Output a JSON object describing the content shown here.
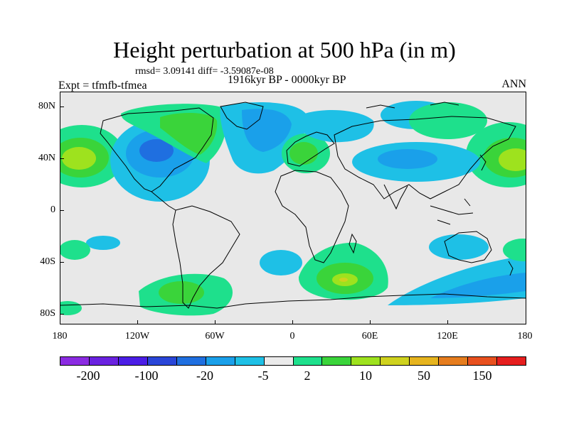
{
  "title": "Height perturbation at 500 hPa (in m)",
  "stats": "rmsd= 3.09141  diff= -3.59087e-08",
  "period": "1916kyr BP - 0000kyr BP",
  "experiment": "Expt = tfmfb-tfmea",
  "season": "ANN",
  "axes": {
    "y_labels": [
      "80N",
      "40N",
      "0",
      "40S",
      "80S"
    ],
    "x_labels": [
      "180",
      "120W",
      "60W",
      "0",
      "60E",
      "120E",
      "180"
    ]
  },
  "colorbar": {
    "colors": [
      "#8b2be2",
      "#6a22e0",
      "#4b1de6",
      "#2a46d8",
      "#1f6fe0",
      "#1aa0ea",
      "#1ec0e6",
      "#ebebeb",
      "#1ee08c",
      "#3ad43a",
      "#9ee21e",
      "#cfd21e",
      "#e6b41e",
      "#e67d1e",
      "#e8501e",
      "#e61e1e"
    ],
    "labels": [
      "-200",
      "-100",
      "-20",
      "-5",
      "2",
      "10",
      "50",
      "150"
    ]
  },
  "colors": {
    "ocean_neutral": "#e8e8e8",
    "light_blue": "#1ec0e6",
    "mid_blue": "#1aa0ea",
    "blue": "#1f6fe0",
    "green_cyan": "#1ee08c",
    "green": "#3ad43a",
    "lime": "#9ee21e",
    "yellow": "#cfd21e"
  }
}
